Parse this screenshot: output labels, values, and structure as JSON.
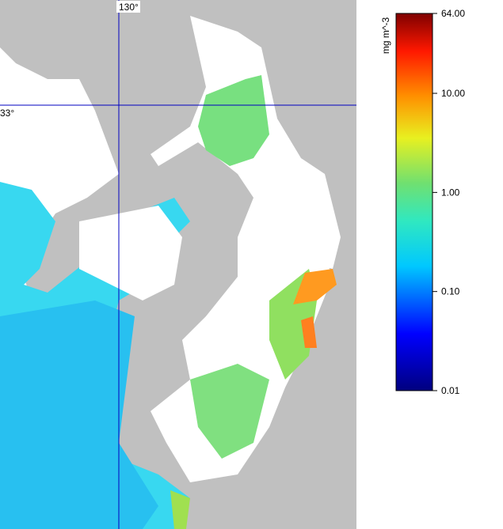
{
  "map": {
    "grid_labels": {
      "longitude": "130°",
      "latitude": "33°"
    }
  },
  "colorbar": {
    "label": "mg m^-3",
    "scale": "log",
    "lim": [
      0.01,
      64
    ],
    "ticks": [
      {
        "value": 0.01,
        "label": "0.01"
      },
      {
        "value": 0.1,
        "label": "0.10"
      },
      {
        "value": 1,
        "label": "1.00"
      },
      {
        "value": 10,
        "label": "10.00"
      },
      {
        "value": 64,
        "label": "64.00"
      }
    ]
  }
}
